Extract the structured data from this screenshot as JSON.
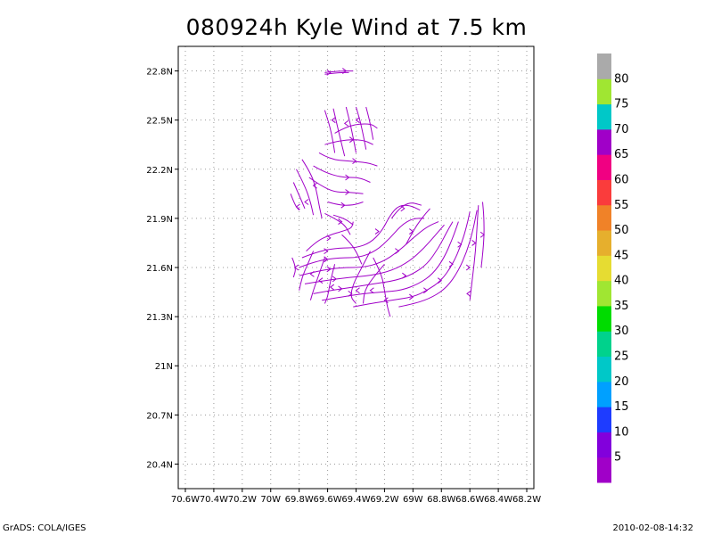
{
  "footer": {
    "left": "GrADS: COLA/IGES",
    "right": "2010-02-08-14:32"
  },
  "colors": {
    "streamline": "#a000c8",
    "grid": "#9a9a9a"
  },
  "chart_data": {
    "type": "streamline",
    "title": "080924h Kyle Wind at 7.5 km",
    "xlabel": "",
    "ylabel": "",
    "xlim": [
      -70.65,
      -68.15
    ],
    "ylim": [
      20.25,
      22.95
    ],
    "grid": true,
    "x_ticks": [
      {
        "value": -70.6,
        "label": "70.6W"
      },
      {
        "value": -70.4,
        "label": "70.4W"
      },
      {
        "value": -70.2,
        "label": "70.2W"
      },
      {
        "value": -70.0,
        "label": "70W"
      },
      {
        "value": -69.8,
        "label": "69.8W"
      },
      {
        "value": -69.6,
        "label": "69.6W"
      },
      {
        "value": -69.4,
        "label": "69.4W"
      },
      {
        "value": -69.2,
        "label": "69.2W"
      },
      {
        "value": -69.0,
        "label": "69W"
      },
      {
        "value": -68.8,
        "label": "68.8W"
      },
      {
        "value": -68.6,
        "label": "68.6W"
      },
      {
        "value": -68.4,
        "label": "68.4W"
      },
      {
        "value": -68.2,
        "label": "68.2W"
      }
    ],
    "y_ticks": [
      {
        "value": 20.4,
        "label": "20.4N"
      },
      {
        "value": 20.7,
        "label": "20.7N"
      },
      {
        "value": 21.0,
        "label": "21N"
      },
      {
        "value": 21.3,
        "label": "21.3N"
      },
      {
        "value": 21.6,
        "label": "21.6N"
      },
      {
        "value": 21.9,
        "label": "21.9N"
      },
      {
        "value": 22.2,
        "label": "22.2N"
      },
      {
        "value": 22.5,
        "label": "22.5N"
      },
      {
        "value": 22.8,
        "label": "22.8N"
      }
    ],
    "colorbar": {
      "labels": [
        "5",
        "10",
        "15",
        "20",
        "25",
        "30",
        "35",
        "40",
        "45",
        "50",
        "55",
        "60",
        "65",
        "70",
        "75",
        "80"
      ],
      "colors": [
        "#a000c8",
        "#8200dc",
        "#1e3cff",
        "#00a0ff",
        "#00c8c8",
        "#00d28c",
        "#00dc00",
        "#a0e632",
        "#e6dc32",
        "#e6af2d",
        "#f08228",
        "#fa3c3c",
        "#f00082",
        "#a000c8",
        "#00c8c8",
        "#a0e632",
        "#aaaaaa"
      ]
    },
    "streamlines": [
      [
        [
          -69.62,
          22.79
        ],
        [
          -69.52,
          22.8
        ],
        [
          -69.42,
          22.8
        ]
      ],
      [
        [
          -69.62,
          22.78
        ],
        [
          -69.52,
          22.79
        ],
        [
          -69.45,
          22.79
        ]
      ],
      [
        [
          -69.55,
          22.3
        ],
        [
          -69.57,
          22.42
        ],
        [
          -69.62,
          22.56
        ]
      ],
      [
        [
          -69.48,
          22.28
        ],
        [
          -69.52,
          22.42
        ],
        [
          -69.56,
          22.57
        ]
      ],
      [
        [
          -69.4,
          22.3
        ],
        [
          -69.43,
          22.44
        ],
        [
          -69.47,
          22.58
        ]
      ],
      [
        [
          -69.33,
          22.32
        ],
        [
          -69.36,
          22.46
        ],
        [
          -69.4,
          22.58
        ]
      ],
      [
        [
          -69.28,
          22.38
        ],
        [
          -69.3,
          22.48
        ],
        [
          -69.33,
          22.58
        ]
      ],
      [
        [
          -69.55,
          22.42
        ],
        [
          -69.45,
          22.47
        ],
        [
          -69.3,
          22.48
        ],
        [
          -69.25,
          22.45
        ]
      ],
      [
        [
          -69.62,
          22.35
        ],
        [
          -69.5,
          22.38
        ],
        [
          -69.35,
          22.38
        ],
        [
          -69.28,
          22.35
        ]
      ],
      [
        [
          -69.66,
          22.3
        ],
        [
          -69.58,
          22.26
        ],
        [
          -69.45,
          22.25
        ],
        [
          -69.32,
          22.24
        ],
        [
          -69.25,
          22.22
        ]
      ],
      [
        [
          -69.7,
          22.22
        ],
        [
          -69.62,
          22.18
        ],
        [
          -69.5,
          22.15
        ],
        [
          -69.38,
          22.15
        ],
        [
          -69.3,
          22.12
        ]
      ],
      [
        [
          -69.73,
          22.15
        ],
        [
          -69.65,
          22.1
        ],
        [
          -69.55,
          22.06
        ],
        [
          -69.45,
          22.06
        ],
        [
          -69.35,
          22.05
        ]
      ],
      [
        [
          -69.78,
          22.26
        ],
        [
          -69.72,
          22.18
        ],
        [
          -69.68,
          22.08
        ],
        [
          -69.66,
          21.98
        ],
        [
          -69.64,
          21.9
        ]
      ],
      [
        [
          -69.82,
          22.2
        ],
        [
          -69.76,
          22.1
        ],
        [
          -69.72,
          22.0
        ],
        [
          -69.7,
          21.92
        ]
      ],
      [
        [
          -69.84,
          22.12
        ],
        [
          -69.8,
          22.04
        ],
        [
          -69.76,
          21.96
        ]
      ],
      [
        [
          -69.86,
          22.05
        ],
        [
          -69.83,
          21.98
        ],
        [
          -69.8,
          21.95
        ]
      ],
      [
        [
          -69.6,
          22.0
        ],
        [
          -69.52,
          21.98
        ],
        [
          -69.42,
          21.98
        ],
        [
          -69.35,
          22.0
        ]
      ],
      [
        [
          -69.62,
          21.93
        ],
        [
          -69.55,
          21.9
        ],
        [
          -69.48,
          21.86
        ],
        [
          -69.44,
          21.8
        ]
      ],
      [
        [
          -69.75,
          21.7
        ],
        [
          -69.68,
          21.76
        ],
        [
          -69.58,
          21.8
        ],
        [
          -69.5,
          21.82
        ],
        [
          -69.43,
          21.84
        ],
        [
          -69.42,
          21.88
        ]
      ],
      [
        [
          -69.78,
          21.66
        ],
        [
          -69.66,
          21.7
        ],
        [
          -69.52,
          21.72
        ],
        [
          -69.4,
          21.72
        ],
        [
          -69.3,
          21.75
        ],
        [
          -69.22,
          21.82
        ],
        [
          -69.16,
          21.92
        ],
        [
          -69.1,
          21.98
        ],
        [
          -69.02,
          21.98
        ],
        [
          -68.95,
          21.95
        ]
      ],
      [
        [
          -69.8,
          21.6
        ],
        [
          -69.68,
          21.64
        ],
        [
          -69.52,
          21.66
        ],
        [
          -69.38,
          21.66
        ],
        [
          -69.26,
          21.7
        ],
        [
          -69.16,
          21.78
        ],
        [
          -69.08,
          21.86
        ],
        [
          -69.0,
          21.9
        ],
        [
          -68.92,
          21.9
        ]
      ],
      [
        [
          -69.8,
          21.55
        ],
        [
          -69.66,
          21.58
        ],
        [
          -69.5,
          21.6
        ],
        [
          -69.35,
          21.6
        ],
        [
          -69.22,
          21.63
        ],
        [
          -69.1,
          21.7
        ],
        [
          -69.0,
          21.78
        ],
        [
          -68.9,
          21.85
        ],
        [
          -68.82,
          21.88
        ]
      ],
      [
        [
          -69.76,
          21.5
        ],
        [
          -69.62,
          21.52
        ],
        [
          -69.45,
          21.54
        ],
        [
          -69.3,
          21.55
        ],
        [
          -69.15,
          21.58
        ],
        [
          -69.02,
          21.64
        ],
        [
          -68.92,
          21.72
        ],
        [
          -68.84,
          21.8
        ],
        [
          -68.78,
          21.86
        ]
      ],
      [
        [
          -69.7,
          21.44
        ],
        [
          -69.58,
          21.46
        ],
        [
          -69.42,
          21.48
        ],
        [
          -69.28,
          21.5
        ],
        [
          -69.12,
          21.52
        ],
        [
          -69.0,
          21.56
        ],
        [
          -68.9,
          21.62
        ],
        [
          -68.82,
          21.72
        ],
        [
          -68.76,
          21.82
        ],
        [
          -68.72,
          21.88
        ]
      ],
      [
        [
          -69.64,
          21.4
        ],
        [
          -69.5,
          21.42
        ],
        [
          -69.36,
          21.44
        ],
        [
          -69.22,
          21.45
        ],
        [
          -69.08,
          21.46
        ],
        [
          -68.96,
          21.5
        ],
        [
          -68.86,
          21.56
        ],
        [
          -68.78,
          21.66
        ],
        [
          -68.72,
          21.78
        ],
        [
          -68.68,
          21.88
        ]
      ],
      [
        [
          -69.42,
          21.36
        ],
        [
          -69.3,
          21.38
        ],
        [
          -69.15,
          21.4
        ],
        [
          -69.0,
          21.42
        ],
        [
          -68.9,
          21.46
        ],
        [
          -68.8,
          21.52
        ],
        [
          -68.72,
          21.62
        ],
        [
          -68.66,
          21.74
        ],
        [
          -68.62,
          21.86
        ],
        [
          -68.6,
          21.94
        ]
      ],
      [
        [
          -69.1,
          21.36
        ],
        [
          -68.98,
          21.38
        ],
        [
          -68.86,
          21.42
        ],
        [
          -68.76,
          21.48
        ],
        [
          -68.68,
          21.58
        ],
        [
          -68.62,
          21.7
        ],
        [
          -68.58,
          21.82
        ],
        [
          -68.55,
          21.95
        ]
      ],
      [
        [
          -68.6,
          21.4
        ],
        [
          -68.58,
          21.55
        ],
        [
          -68.56,
          21.7
        ],
        [
          -68.55,
          21.85
        ],
        [
          -68.54,
          21.98
        ]
      ],
      [
        [
          -68.52,
          21.6
        ],
        [
          -68.5,
          21.75
        ],
        [
          -68.5,
          21.9
        ],
        [
          -68.51,
          22.0
        ]
      ],
      [
        [
          -69.7,
          21.7
        ],
        [
          -69.74,
          21.62
        ],
        [
          -69.78,
          21.54
        ],
        [
          -69.8,
          21.46
        ]
      ],
      [
        [
          -69.62,
          21.66
        ],
        [
          -69.66,
          21.56
        ],
        [
          -69.7,
          21.46
        ],
        [
          -69.72,
          21.4
        ]
      ],
      [
        [
          -69.55,
          21.62
        ],
        [
          -69.58,
          21.52
        ],
        [
          -69.6,
          21.42
        ],
        [
          -69.62,
          21.38
        ]
      ],
      [
        [
          -69.3,
          21.7
        ],
        [
          -69.36,
          21.6
        ],
        [
          -69.42,
          21.5
        ],
        [
          -69.44,
          21.42
        ],
        [
          -69.4,
          21.38
        ]
      ],
      [
        [
          -69.2,
          21.62
        ],
        [
          -69.28,
          21.54
        ],
        [
          -69.34,
          21.46
        ],
        [
          -69.35,
          21.38
        ]
      ],
      [
        [
          -69.28,
          21.66
        ],
        [
          -69.22,
          21.56
        ],
        [
          -69.2,
          21.46
        ],
        [
          -69.18,
          21.36
        ],
        [
          -69.16,
          21.3
        ]
      ],
      [
        [
          -69.05,
          21.74
        ],
        [
          -69.0,
          21.82
        ],
        [
          -68.94,
          21.9
        ],
        [
          -68.88,
          21.96
        ]
      ],
      [
        [
          -69.15,
          21.9
        ],
        [
          -69.1,
          21.96
        ],
        [
          -69.02,
          22.0
        ],
        [
          -68.94,
          21.98
        ]
      ],
      [
        [
          -69.5,
          21.8
        ],
        [
          -69.45,
          21.76
        ],
        [
          -69.4,
          21.7
        ],
        [
          -69.36,
          21.62
        ]
      ],
      [
        [
          -69.56,
          21.92
        ],
        [
          -69.48,
          21.9
        ],
        [
          -69.42,
          21.86
        ]
      ],
      [
        [
          -69.85,
          21.66
        ],
        [
          -69.82,
          21.6
        ],
        [
          -69.84,
          21.54
        ]
      ]
    ],
    "arrows": [
      [
        -69.58,
        22.79,
        1
      ],
      [
        -69.47,
        22.8,
        1
      ],
      [
        -69.57,
        22.5,
        -1
      ],
      [
        -69.48,
        22.48,
        -1
      ],
      [
        -69.4,
        22.5,
        -1
      ],
      [
        -69.42,
        22.38,
        1
      ],
      [
        -69.4,
        22.25,
        1
      ],
      [
        -69.45,
        22.15,
        1
      ],
      [
        -69.45,
        22.06,
        1
      ],
      [
        -69.7,
        22.1,
        -1
      ],
      [
        -69.76,
        22.0,
        -1
      ],
      [
        -69.82,
        21.97,
        -1
      ],
      [
        -69.48,
        21.98,
        1
      ],
      [
        -69.5,
        21.88,
        1
      ],
      [
        -69.58,
        21.78,
        1
      ],
      [
        -69.6,
        21.7,
        1
      ],
      [
        -69.6,
        21.65,
        1
      ],
      [
        -69.58,
        21.59,
        1
      ],
      [
        -69.54,
        21.53,
        1
      ],
      [
        -69.5,
        21.47,
        1
      ],
      [
        -69.43,
        21.44,
        1
      ],
      [
        -69.24,
        21.82,
        1
      ],
      [
        -69.1,
        21.7,
        1
      ],
      [
        -69.05,
        21.55,
        1
      ],
      [
        -69.0,
        21.42,
        1
      ],
      [
        -68.9,
        21.46,
        1
      ],
      [
        -68.8,
        21.52,
        1
      ],
      [
        -68.72,
        21.62,
        1
      ],
      [
        -68.66,
        21.74,
        1
      ],
      [
        -68.6,
        21.6,
        1
      ],
      [
        -68.56,
        21.75,
        1
      ],
      [
        -68.5,
        21.8,
        1
      ],
      [
        -69.72,
        21.56,
        -1
      ],
      [
        -69.66,
        21.52,
        -1
      ],
      [
        -69.58,
        21.48,
        -1
      ],
      [
        -69.4,
        21.46,
        -1
      ],
      [
        -69.3,
        21.46,
        -1
      ],
      [
        -69.2,
        21.4,
        -1
      ],
      [
        -69.0,
        21.82,
        1
      ],
      [
        -69.06,
        21.96,
        1
      ],
      [
        -68.62,
        21.44,
        -1
      ],
      [
        -69.83,
        21.6,
        -1
      ]
    ]
  }
}
